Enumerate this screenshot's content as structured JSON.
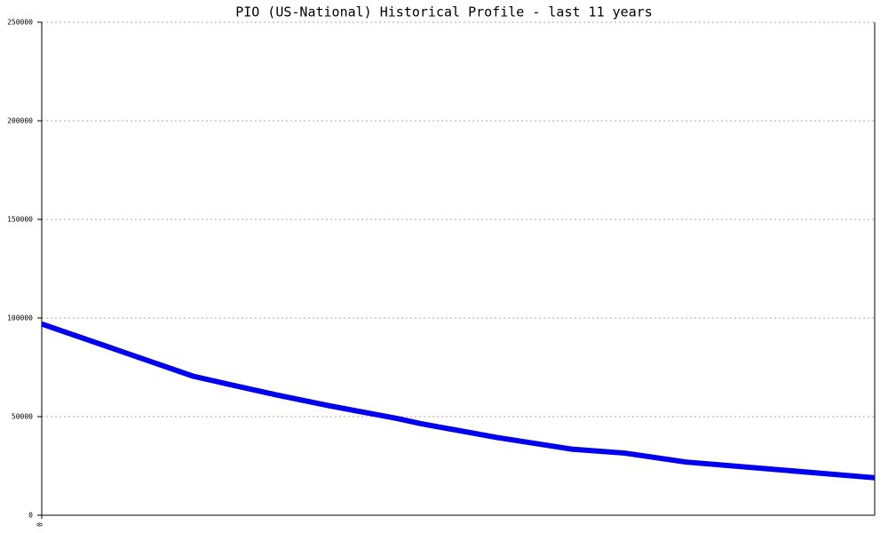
{
  "chart_data": {
    "type": "line",
    "title": "PIO (US-National) Historical Profile - last 11 years",
    "x": [
      0,
      2,
      2.4,
      3.1,
      3.8,
      4.7,
      5,
      6,
      7,
      7.7,
      8.5,
      11
    ],
    "series": [
      {
        "color": "#0000ee",
        "values": [
          97000,
          70500,
          67000,
          61000,
          55500,
          49000,
          46500,
          39500,
          33500,
          31500,
          27000,
          19000
        ]
      }
    ],
    "xlim": [
      0,
      11
    ],
    "xticks": [
      0
    ],
    "ylim": [
      0,
      250000
    ],
    "yticks": [
      0,
      50000,
      100000,
      150000,
      200000,
      250000
    ],
    "grid": true
  }
}
